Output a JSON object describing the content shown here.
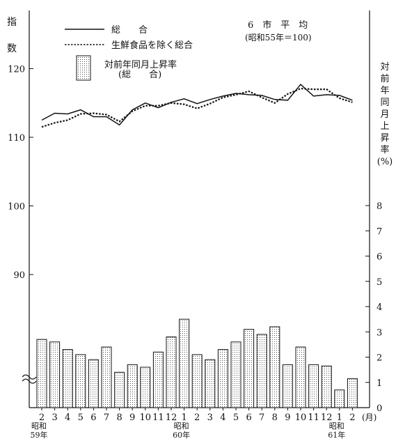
{
  "chart_data": {
    "type": "bar+line",
    "title": "6　市　平　均",
    "subtitle": "(昭和55年＝100)",
    "left_axis_label_1": "指",
    "left_axis_label_2": "数",
    "right_axis_label": [
      "対",
      "前",
      "年",
      "同",
      "月",
      "上",
      "昇",
      "率",
      "(%)"
    ],
    "left_axis": {
      "ticks": [
        90,
        100,
        110,
        120
      ],
      "ylim": [
        80,
        122
      ],
      "broken": true
    },
    "right_axis": {
      "ticks": [
        0,
        1,
        2,
        3,
        4,
        5,
        6,
        7,
        8
      ],
      "ylim": [
        0,
        8
      ]
    },
    "categories": [
      "2",
      "3",
      "4",
      "5",
      "6",
      "7",
      "8",
      "9",
      "10",
      "11",
      "12",
      "1",
      "2",
      "3",
      "4",
      "5",
      "6",
      "7",
      "8",
      "9",
      "10",
      "11",
      "12",
      "1",
      "2"
    ],
    "month_unit": "(月)",
    "year_labels": [
      {
        "line1": "昭和",
        "line2": "59年",
        "at_index": 0
      },
      {
        "line1": "昭和",
        "line2": "60年",
        "at_index": 11
      },
      {
        "line1": "昭和",
        "line2": "61年",
        "at_index": 23
      }
    ],
    "legend": {
      "solid": "総　　合",
      "dashed": "生鮮食品を除く総合",
      "bar_line1": "対前年同月上昇率",
      "bar_line2": "(総　　合)"
    },
    "series": [
      {
        "name": "総　　合",
        "style": "solid",
        "values": [
          112.5,
          113.5,
          113.4,
          114.0,
          113.0,
          113.0,
          111.8,
          114.0,
          115.0,
          114.3,
          115.1,
          115.6,
          114.9,
          115.5,
          116.0,
          116.4,
          116.2,
          116.1,
          115.5,
          115.4,
          117.7,
          116.0,
          116.2,
          116.1,
          115.4
        ]
      },
      {
        "name": "生鮮食品を除く総合",
        "style": "dashed",
        "values": [
          111.5,
          112.1,
          112.5,
          113.4,
          113.5,
          113.3,
          112.3,
          113.8,
          114.6,
          114.6,
          115.0,
          114.8,
          114.2,
          114.9,
          115.8,
          116.2,
          116.7,
          115.8,
          115.0,
          116.3,
          117.1,
          117.0,
          117.0,
          115.7,
          115.1
        ]
      },
      {
        "name": "対前年同月上昇率",
        "style": "bar",
        "values": [
          2.7,
          2.6,
          2.3,
          2.1,
          1.9,
          2.4,
          1.4,
          1.7,
          1.6,
          2.2,
          2.8,
          3.5,
          2.1,
          1.9,
          2.3,
          2.6,
          3.1,
          2.9,
          3.2,
          1.7,
          2.4,
          1.7,
          1.65,
          0.7,
          1.15
        ]
      }
    ]
  }
}
